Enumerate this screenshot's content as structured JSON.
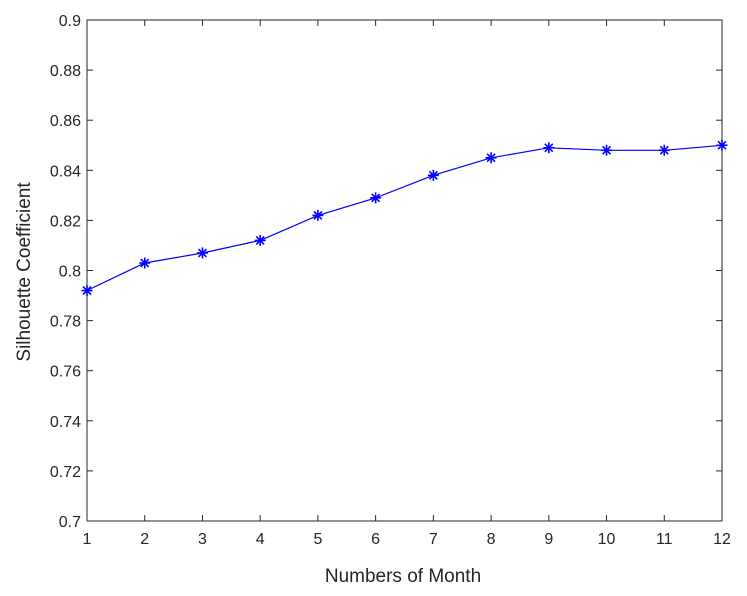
{
  "chart_data": {
    "type": "line",
    "xlabel": "Numbers of Month",
    "ylabel": "Silhouette Coefficient",
    "xlim": [
      1,
      12
    ],
    "ylim": [
      0.7,
      0.9
    ],
    "x_ticks": [
      1,
      2,
      3,
      4,
      5,
      6,
      7,
      8,
      9,
      10,
      11,
      12
    ],
    "y_ticks": [
      "0.7",
      "0.72",
      "0.74",
      "0.76",
      "0.78",
      "0.8",
      "0.82",
      "0.84",
      "0.86",
      "0.88",
      "0.9"
    ],
    "grid": false,
    "marker": "asterisk",
    "series": [
      {
        "color": "#0000ff",
        "x": [
          1,
          2,
          3,
          4,
          5,
          6,
          7,
          8,
          9,
          10,
          11,
          12
        ],
        "y": [
          0.792,
          0.803,
          0.807,
          0.812,
          0.822,
          0.829,
          0.838,
          0.845,
          0.849,
          0.848,
          0.848,
          0.85
        ]
      }
    ]
  }
}
